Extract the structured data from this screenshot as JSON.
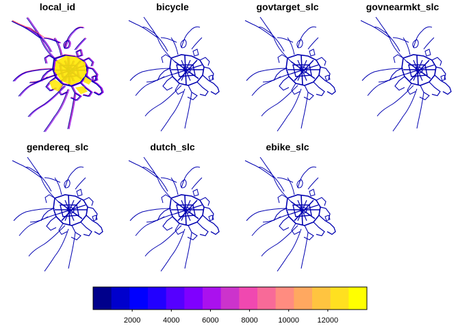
{
  "figure": {
    "panels": [
      {
        "title": "local_id",
        "fill": "gradient"
      },
      {
        "title": "bicycle",
        "fill": "low"
      },
      {
        "title": "govtarget_slc",
        "fill": "low"
      },
      {
        "title": "govnearmkt_slc",
        "fill": "low"
      },
      {
        "title": "gendereq_slc",
        "fill": "low"
      },
      {
        "title": "dutch_slc",
        "fill": "low"
      },
      {
        "title": "ebike_slc",
        "fill": "low"
      }
    ]
  },
  "legend": {
    "ticks": [
      "2000",
      "4000",
      "6000",
      "8000",
      "10000",
      "12000"
    ],
    "tick_values": [
      2000,
      4000,
      6000,
      8000,
      10000,
      12000
    ],
    "min": 0,
    "max": 14000,
    "colors": [
      "#00008B",
      "#0000CC",
      "#0000FF",
      "#2200FF",
      "#5500FF",
      "#7F00FF",
      "#AA11EE",
      "#CC33CC",
      "#F048B0",
      "#F86A98",
      "#FF8C80",
      "#FFA860",
      "#FFC440",
      "#FFE020",
      "#FFFF00"
    ]
  },
  "colors": {
    "route_low": "#0000B0",
    "route_mid": "#8800EE",
    "route_pink": "#F050A0",
    "route_high": "#FFE800"
  }
}
